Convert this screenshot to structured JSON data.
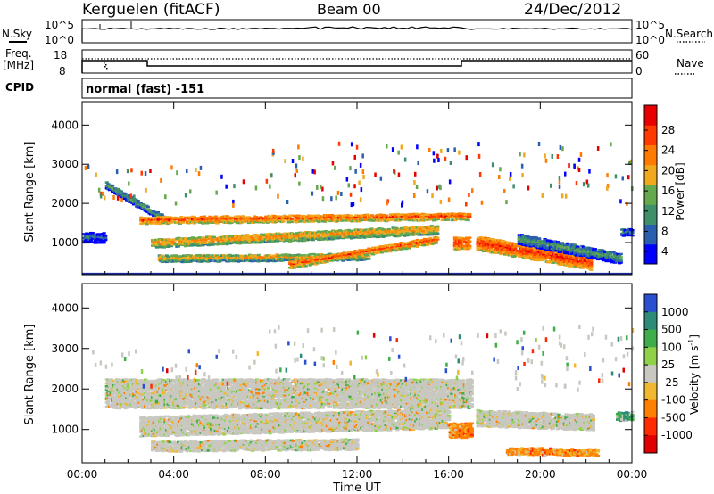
{
  "header": {
    "station": "Kerguelen (fitACF)",
    "beam": "Beam 00",
    "date": "24/Dec/2012"
  },
  "params": {
    "nsky_label": "N.Sky",
    "nsky_ticks": [
      "10^5",
      "10^0"
    ],
    "nsearch_label": "N.Search",
    "freq_label_1": "Freq.",
    "freq_label_2": "[MHz]",
    "freq_ticks": [
      "18",
      "8"
    ],
    "nave_ticks": [
      "60",
      "0"
    ],
    "nave_label": "Nave",
    "cpid_label": "CPID",
    "cpid_value": "normal (fast) -151"
  },
  "chart_data": [
    {
      "type": "heatmap",
      "title": "",
      "xlabel": "",
      "ylabel": "Slant Range [km]",
      "x_ticks": [
        "00:00",
        "04:00",
        "08:00",
        "12:00",
        "16:00",
        "20:00",
        "00:00"
      ],
      "x_hours": [
        0,
        4,
        8,
        12,
        16,
        20,
        24
      ],
      "y_ticks": [
        4000,
        3000,
        2000,
        1000
      ],
      "ylim": [
        180,
        4600
      ],
      "xlim_hours": [
        0,
        24
      ],
      "colorbar": {
        "label": "Power [dB]",
        "ticks": [
          "28",
          "24",
          "20",
          "16",
          "12",
          "8",
          "4"
        ],
        "range": [
          0,
          30
        ],
        "colors": [
          "#0000ff",
          "#2a5fb0",
          "#3f8f6b",
          "#66a84e",
          "#f0a81e",
          "#ff7a00",
          "#ff3a00",
          "#e80000"
        ]
      },
      "bands": [
        {
          "from_hour": 1.0,
          "to_hour": 3.6,
          "start_km": 2500,
          "end_km": 1600,
          "width_km": 200,
          "power_db": 12
        },
        {
          "from_hour": 2.5,
          "to_hour": 16.9,
          "start_km": 1600,
          "end_km": 1700,
          "width_km": 200,
          "power_db": 24
        },
        {
          "from_hour": 3.0,
          "to_hour": 15.5,
          "start_km": 1000,
          "end_km": 1350,
          "width_km": 220,
          "power_db": 20
        },
        {
          "from_hour": 3.3,
          "to_hour": 12.5,
          "start_km": 600,
          "end_km": 650,
          "width_km": 160,
          "power_db": 18
        },
        {
          "from_hour": 9.0,
          "to_hour": 15.5,
          "start_km": 450,
          "end_km": 1100,
          "width_km": 180,
          "power_db": 24
        },
        {
          "from_hour": 0.0,
          "to_hour": 1.0,
          "start_km": 1150,
          "end_km": 1150,
          "width_km": 280,
          "power_db": 8
        },
        {
          "from_hour": 16.2,
          "to_hour": 16.9,
          "start_km": 1000,
          "end_km": 1000,
          "width_km": 300,
          "power_db": 26
        },
        {
          "from_hour": 17.2,
          "to_hour": 22.2,
          "start_km": 1000,
          "end_km": 500,
          "width_km": 350,
          "power_db": 26
        },
        {
          "from_hour": 19.0,
          "to_hour": 23.5,
          "start_km": 1100,
          "end_km": 600,
          "width_km": 250,
          "power_db": 12
        },
        {
          "from_hour": 23.5,
          "to_hour": 24.0,
          "start_km": 1300,
          "end_km": 1300,
          "width_km": 200,
          "power_db": 10
        }
      ],
      "ground_scatter_line_km": 200
    },
    {
      "type": "heatmap",
      "title": "",
      "xlabel": "Time UT",
      "ylabel": "Slant Range [km]",
      "x_ticks": [
        "00:00",
        "04:00",
        "08:00",
        "12:00",
        "16:00",
        "20:00",
        "00:00"
      ],
      "x_hours": [
        0,
        4,
        8,
        12,
        16,
        20,
        24
      ],
      "y_ticks": [
        4000,
        3000,
        2000,
        1000
      ],
      "ylim": [
        180,
        4600
      ],
      "xlim_hours": [
        0,
        24
      ],
      "colorbar": {
        "label": "Velocity [m s^-1]",
        "label_main": "Velocity  [m s",
        "label_sup": "-1",
        "label_end": "]",
        "ticks": [
          "1000",
          "500",
          "100",
          "25",
          "-25",
          "-100",
          "-500",
          "-1000"
        ],
        "colors": [
          "#2a4fd0",
          "#2e8b7a",
          "#3fae4a",
          "#8fd24a",
          "#c8c8c0",
          "#f0b830",
          "#ff8000",
          "#ff2a00",
          "#e00000"
        ]
      },
      "bands": [
        {
          "from_hour": 1.0,
          "to_hour": 17.0,
          "start_km": 1900,
          "end_km": 1900,
          "width_km": 700,
          "velocity": 0
        },
        {
          "from_hour": 2.5,
          "to_hour": 16.0,
          "start_km": 1100,
          "end_km": 1300,
          "width_km": 500,
          "velocity": 0
        },
        {
          "from_hour": 3.0,
          "to_hour": 12.0,
          "start_km": 600,
          "end_km": 650,
          "width_km": 250,
          "velocity": 0
        },
        {
          "from_hour": 16.0,
          "to_hour": 17.0,
          "start_km": 1000,
          "end_km": 1000,
          "width_km": 350,
          "velocity": -300
        },
        {
          "from_hour": 17.2,
          "to_hour": 22.3,
          "start_km": 1300,
          "end_km": 1200,
          "width_km": 400,
          "velocity": 0
        },
        {
          "from_hour": 18.5,
          "to_hour": 22.5,
          "start_km": 500,
          "end_km": 450,
          "width_km": 180,
          "velocity": -200
        },
        {
          "from_hour": 23.3,
          "to_hour": 24.0,
          "start_km": 1350,
          "end_km": 1350,
          "width_km": 220,
          "velocity": 400
        }
      ]
    }
  ]
}
